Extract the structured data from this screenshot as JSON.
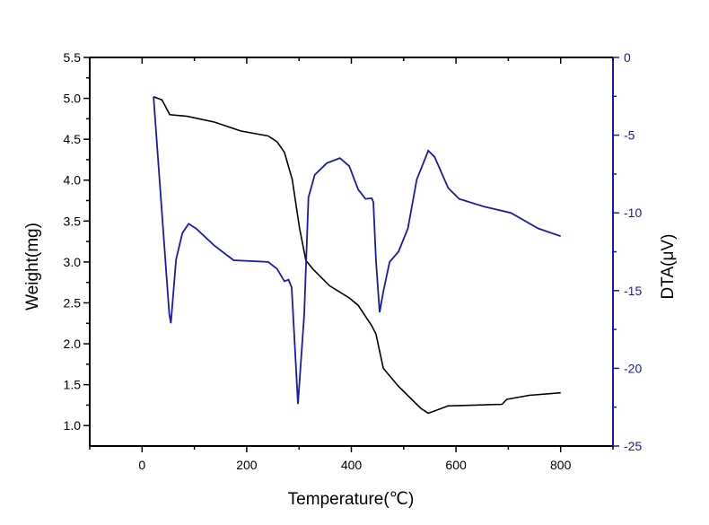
{
  "chart_data": {
    "type": "line",
    "title": "",
    "xlabel": "Temperature(℃)",
    "ylabel_left": "Weight(mg)",
    "ylabel_right": "DTA(μV)",
    "xlim": [
      -100,
      900
    ],
    "ylim_left": [
      0.75,
      5.5
    ],
    "ylim_right": [
      -25,
      0
    ],
    "x_ticks": [
      0,
      200,
      400,
      600,
      800
    ],
    "y_left_ticks": [
      1.0,
      1.5,
      2.0,
      2.5,
      3.0,
      3.5,
      4.0,
      4.5,
      5.0,
      5.5
    ],
    "y_right_ticks": [
      0,
      -5,
      -10,
      -15,
      -20,
      -25
    ],
    "grid": false,
    "colors": {
      "weight": "#000000",
      "dta": "#1a1aa6",
      "right_axis": "#1a1aa6"
    },
    "series": [
      {
        "axis": "left",
        "x": [
          22,
          38,
          53,
          86,
          138,
          189,
          241,
          258,
          272,
          287,
          301,
          313,
          327,
          358,
          396,
          413,
          439,
          447,
          461,
          490,
          533,
          547,
          585,
          688,
          697,
          740,
          800
        ],
        "y": [
          5.02,
          4.98,
          4.8,
          4.78,
          4.71,
          4.6,
          4.54,
          4.47,
          4.34,
          4.01,
          3.41,
          3.02,
          2.91,
          2.71,
          2.56,
          2.47,
          2.22,
          2.12,
          1.7,
          1.48,
          1.21,
          1.15,
          1.24,
          1.26,
          1.32,
          1.37,
          1.4
        ]
      },
      {
        "axis": "right",
        "x": [
          22,
          52,
          55,
          65,
          77,
          89,
          103,
          138,
          175,
          241,
          258,
          272,
          280,
          286,
          298,
          310,
          318,
          330,
          353,
          378,
          396,
          413,
          427,
          439,
          442,
          447,
          454,
          461,
          473,
          490,
          508,
          525,
          547,
          559,
          585,
          606,
          654,
          705,
          757,
          800
        ],
        "y": [
          -2.54,
          -16.5,
          -17.1,
          -13.0,
          -11.3,
          -10.7,
          -11.0,
          -12.1,
          -13.05,
          -13.16,
          -13.6,
          -14.4,
          -14.3,
          -14.8,
          -22.3,
          -16.5,
          -9.0,
          -7.56,
          -6.8,
          -6.47,
          -7.0,
          -8.5,
          -9.1,
          -9.06,
          -9.3,
          -13.05,
          -16.4,
          -15.07,
          -13.16,
          -12.5,
          -11.0,
          -7.85,
          -6.0,
          -6.4,
          -8.4,
          -9.1,
          -9.6,
          -10.0,
          -11.0,
          -11.5
        ]
      }
    ]
  }
}
